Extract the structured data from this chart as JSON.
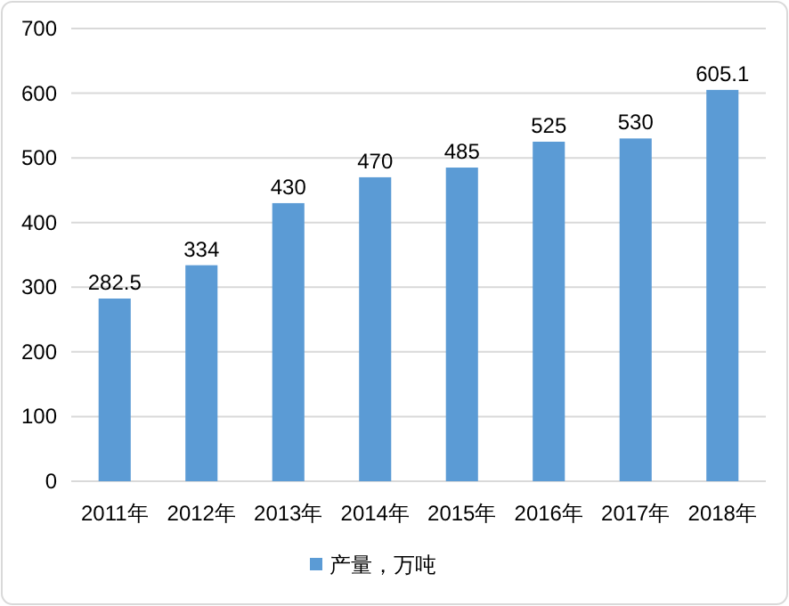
{
  "chart_data": {
    "type": "bar",
    "categories": [
      "2011年",
      "2012年",
      "2013年",
      "2014年",
      "2015年",
      "2016年",
      "2017年",
      "2018年"
    ],
    "series": [
      {
        "name": "产量，万吨",
        "color": "#5b9bd5",
        "values": [
          282.5,
          334,
          430,
          470,
          485,
          525,
          530,
          605.1
        ]
      }
    ],
    "ylim": [
      0,
      700
    ],
    "yticks": [
      0,
      100,
      200,
      300,
      400,
      500,
      600,
      700
    ],
    "grid": "y",
    "legend": "bottom",
    "data_labels": true
  }
}
